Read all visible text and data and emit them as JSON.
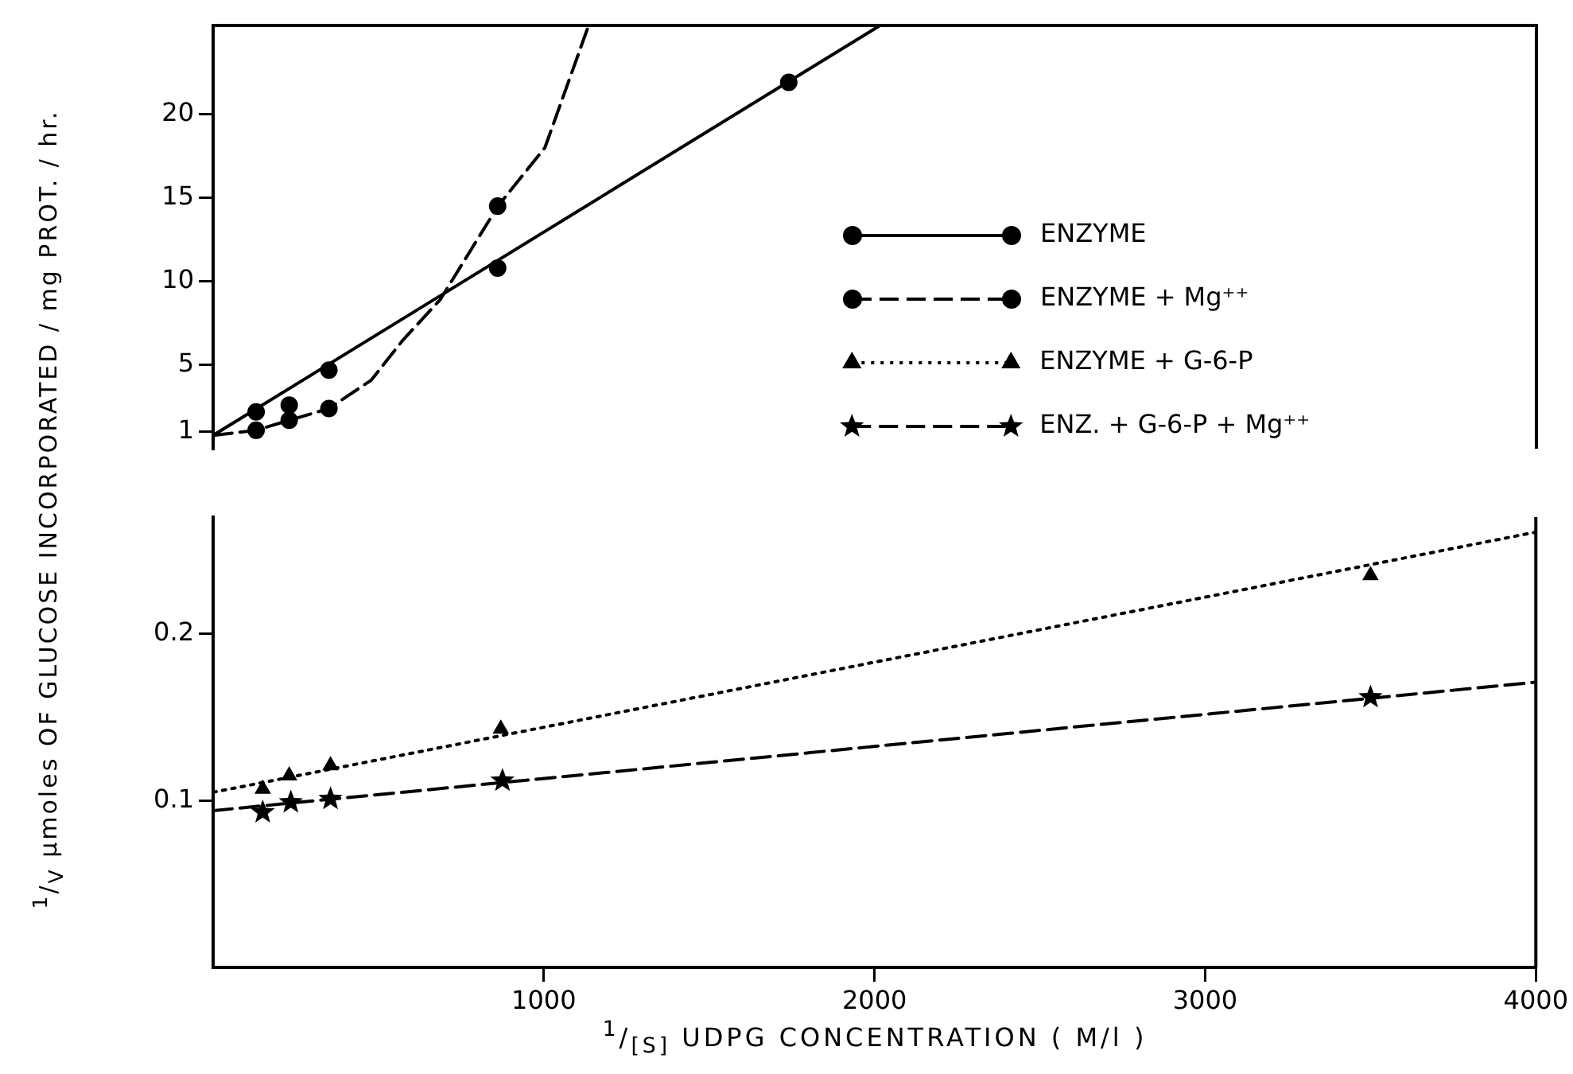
{
  "chart_data": [
    {
      "type": "scatter",
      "ylabel": "$^{1}$/$_{V}$ µmoles OF GLUCOSE INCORPORATED / mg PROT. / hr.",
      "xlim": [
        0,
        4000
      ],
      "ylim": [
        0,
        25.3
      ],
      "yticks": [
        1,
        5,
        10,
        15,
        20
      ],
      "tick_labels": "y",
      "grid": false,
      "legend": "right",
      "series": [
        {
          "type": "scatter",
          "name": "ENZYME",
          "color": "#000000",
          "marker": "circle",
          "line_style": "solid",
          "x": [
            130,
            230,
            350,
            860,
            1740
          ],
          "values": [
            2.2,
            2.6,
            4.7,
            10.8,
            21.9
          ]
        },
        {
          "type": "scatter",
          "name": "ENZYME + Mg⁺⁺",
          "color": "#000000",
          "marker": "circle",
          "line_style": "dashed",
          "x": [
            130,
            230,
            350,
            860
          ],
          "values": [
            1.1,
            1.7,
            2.4,
            14.5
          ]
        },
        {
          "type": "line",
          "color": "#000000",
          "marker": "none",
          "line_style": "solid",
          "x": [
            0,
            2016
          ],
          "values": [
            0.8,
            25.3
          ]
        },
        {
          "type": "line",
          "color": "#000000",
          "marker": "none",
          "line_style": "dashed",
          "x": [
            0,
            130,
            230,
            350,
            478,
            574,
            686,
            861,
            1003,
            1135
          ],
          "values": [
            0.8,
            1.1,
            1.7,
            2.4,
            4.1,
            6.5,
            8.9,
            14.5,
            18,
            25.3
          ]
        }
      ]
    },
    {
      "type": "scatter",
      "xlabel": "$^{1}$/$_{[S]}$ UDPG CONCENTRATION ( M/l )",
      "xlim": [
        0,
        4000
      ],
      "xticks": [
        1000,
        2000,
        3000,
        4000
      ],
      "ylim": [
        0,
        0.27
      ],
      "yticks": [
        0.1,
        0.2
      ],
      "grid": false,
      "legend": "top right",
      "series": [
        {
          "type": "scatter",
          "name": "ENZYME + G-6-P",
          "color": "#000000",
          "marker": "triangle",
          "line_style": "dotted",
          "x": [
            150,
            230,
            355,
            870,
            3500
          ],
          "values": [
            0.107,
            0.115,
            0.121,
            0.143,
            0.235
          ]
        },
        {
          "type": "scatter",
          "name": "ENZ. + G-6-P + Mg⁺⁺",
          "color": "#000000",
          "marker": "star",
          "line_style": "dashed",
          "x": [
            150,
            235,
            355,
            875,
            3500
          ],
          "values": [
            0.093,
            0.099,
            0.101,
            0.112,
            0.162
          ]
        },
        {
          "type": "line",
          "color": "#000000",
          "marker": "none",
          "line_style": "dotted",
          "x": [
            0,
            4000
          ],
          "values": [
            0.105,
            0.261
          ]
        },
        {
          "type": "line",
          "color": "#000000",
          "marker": "none",
          "line_style": "dashed",
          "x": [
            0,
            4000
          ],
          "values": [
            0.094,
            0.171
          ]
        }
      ]
    }
  ]
}
